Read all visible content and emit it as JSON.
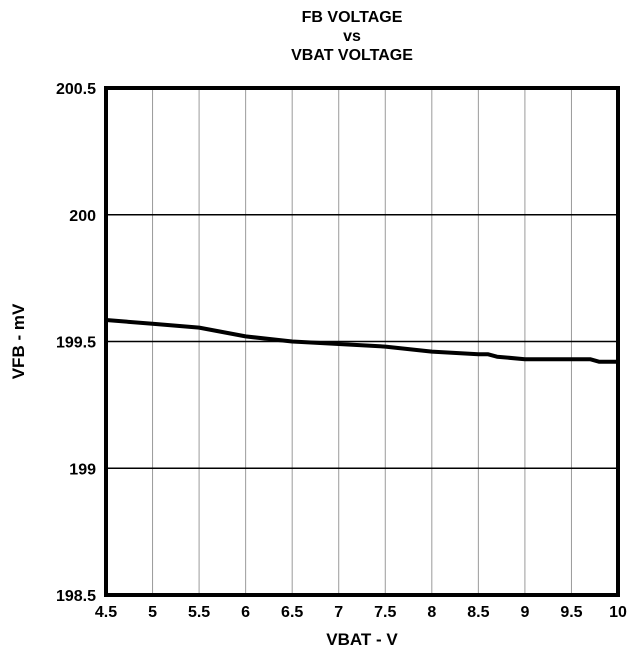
{
  "chart_data": {
    "type": "line",
    "title_lines": [
      "FB VOLTAGE",
      "vs",
      "VBAT VOLTAGE"
    ],
    "xlabel": "VBAT - V",
    "ylabel": "VFB - mV",
    "xlim": [
      4.5,
      10
    ],
    "ylim": [
      198.5,
      200.5
    ],
    "x_ticks": [
      "4.5",
      "5",
      "5.5",
      "6",
      "6.5",
      "7",
      "7.5",
      "8",
      "8.5",
      "9",
      "9.5",
      "10"
    ],
    "y_ticks": [
      "200.5",
      "200",
      "199.5",
      "199",
      "198.5"
    ],
    "grid": true,
    "series": [
      {
        "x": [
          4.5,
          5.0,
          5.5,
          6.0,
          6.5,
          7.0,
          7.5,
          8.0,
          8.5,
          8.6,
          8.7,
          9.0,
          9.5,
          9.7,
          9.8,
          10.0
        ],
        "y": [
          199.585,
          199.57,
          199.555,
          199.52,
          199.5,
          199.49,
          199.48,
          199.46,
          199.45,
          199.45,
          199.44,
          199.43,
          199.43,
          199.43,
          199.42,
          199.42
        ]
      }
    ]
  }
}
